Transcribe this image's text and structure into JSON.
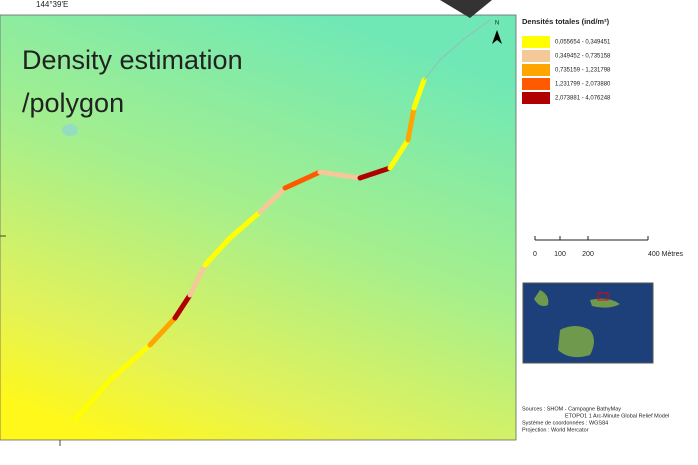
{
  "map": {
    "coordinate_label": "144°39'E",
    "overlay_title": [
      "Density estimation",
      "/polygon"
    ],
    "north": "N",
    "legend": {
      "title": "Densités totales (ind/m²)",
      "classes": [
        {
          "label": "0,055654 - 0,349451",
          "color": "#ffff00"
        },
        {
          "label": "0,349452 - 0,735158",
          "color": "#f5c89a"
        },
        {
          "label": "0,735159 - 1,231798",
          "color": "#ffa500"
        },
        {
          "label": "1,231799 - 2,073880",
          "color": "#ff5a00"
        },
        {
          "label": "2,073881 - 4,076248",
          "color": "#b00000"
        }
      ]
    },
    "scale_bar": [
      "0",
      "100",
      "200",
      "400 Mètres"
    ],
    "sources": [
      "Sources : SHOM - Campagne BathyMay",
      "ETOPO1 1 Arc-Minute Global Relief Model",
      "Système de coordonnées : WGS84",
      "Projection : World Mercator"
    ]
  }
}
